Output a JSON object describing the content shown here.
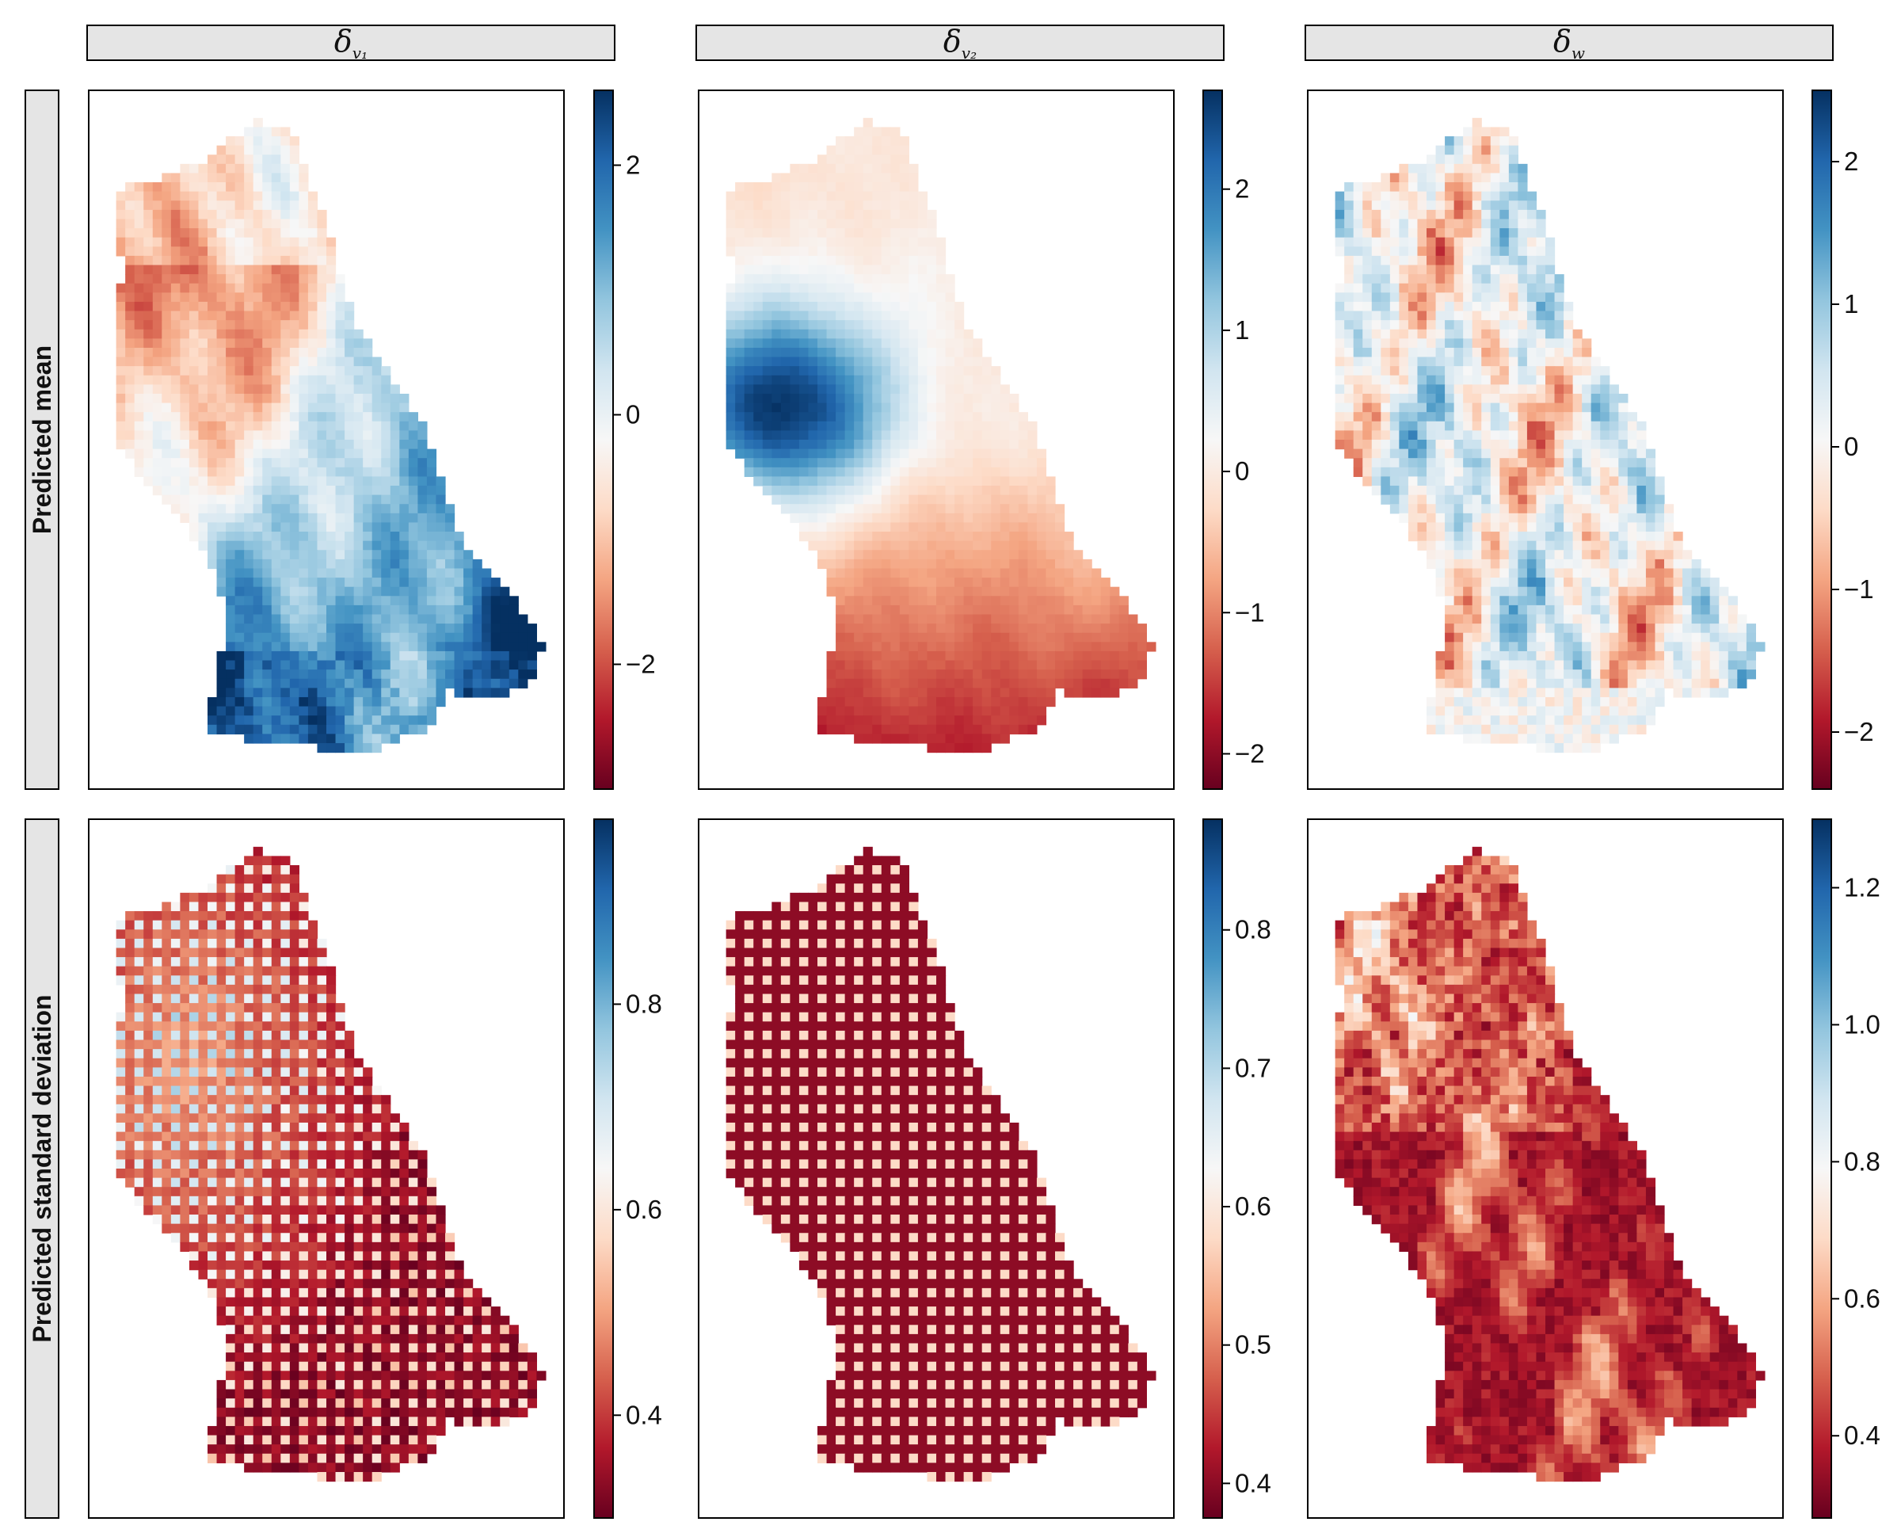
{
  "figure": {
    "column_headers": [
      {
        "symbol": "δ",
        "subscript": "v₁"
      },
      {
        "symbol": "δ",
        "subscript": "v₂"
      },
      {
        "symbol": "δ",
        "subscript": "w"
      }
    ],
    "row_headers": [
      "Predicted mean",
      "Predicted standard deviation"
    ],
    "colormap": {
      "name": "RdBu",
      "stops": [
        "#67001f",
        "#b2182b",
        "#d6604d",
        "#f4a582",
        "#fddbc7",
        "#f7f7f7",
        "#d1e5f0",
        "#92c5de",
        "#4393c3",
        "#2166ac",
        "#053061"
      ]
    },
    "frame_color": "#000000",
    "header_fill": "#e5e5e5"
  },
  "chart_data": [
    {
      "type": "heatmap",
      "panel": "mean-delta-v1",
      "row": "Predicted mean",
      "column": "δ_v1",
      "field": "smooth",
      "colorbar": {
        "range": [
          -3.0,
          2.6
        ],
        "ticks": [
          "−2",
          "0",
          "2"
        ],
        "tick_values": [
          -2,
          0,
          2
        ]
      }
    },
    {
      "type": "heatmap",
      "panel": "mean-delta-v2",
      "row": "Predicted mean",
      "column": "δ_v2",
      "field": "gradient",
      "colorbar": {
        "range": [
          -2.25,
          2.7
        ],
        "ticks": [
          "−2",
          "−1",
          "0",
          "1",
          "2"
        ],
        "tick_values": [
          -2,
          -1,
          0,
          1,
          2
        ]
      }
    },
    {
      "type": "heatmap",
      "panel": "mean-delta-w",
      "row": "Predicted mean",
      "column": "δ_w",
      "field": "noisy",
      "colorbar": {
        "range": [
          -2.4,
          2.5
        ],
        "ticks": [
          "−2",
          "−1",
          "0",
          "1",
          "2"
        ],
        "tick_values": [
          -2,
          -1,
          0,
          1,
          2
        ]
      }
    },
    {
      "type": "heatmap",
      "panel": "sd-delta-v1",
      "row": "Predicted standard deviation",
      "column": "δ_v1",
      "field": "checker-soft",
      "colorbar": {
        "range": [
          0.3,
          0.98
        ],
        "ticks": [
          "0.4",
          "0.6",
          "0.8"
        ],
        "tick_values": [
          0.4,
          0.6,
          0.8
        ]
      }
    },
    {
      "type": "heatmap",
      "panel": "sd-delta-v2",
      "row": "Predicted standard deviation",
      "column": "δ_v2",
      "field": "checker",
      "colorbar": {
        "range": [
          0.375,
          0.88
        ],
        "ticks": [
          "0.4",
          "0.5",
          "0.6",
          "0.7",
          "0.8"
        ],
        "tick_values": [
          0.4,
          0.5,
          0.6,
          0.7,
          0.8
        ]
      }
    },
    {
      "type": "heatmap",
      "panel": "sd-delta-w",
      "row": "Predicted standard deviation",
      "column": "δ_w",
      "field": "checker-noisy",
      "colorbar": {
        "range": [
          0.28,
          1.3
        ],
        "ticks": [
          "0.4",
          "0.6",
          "0.8",
          "1.0",
          "1.2"
        ],
        "tick_values": [
          0.4,
          0.6,
          0.8,
          1.0,
          1.2
        ]
      }
    }
  ]
}
